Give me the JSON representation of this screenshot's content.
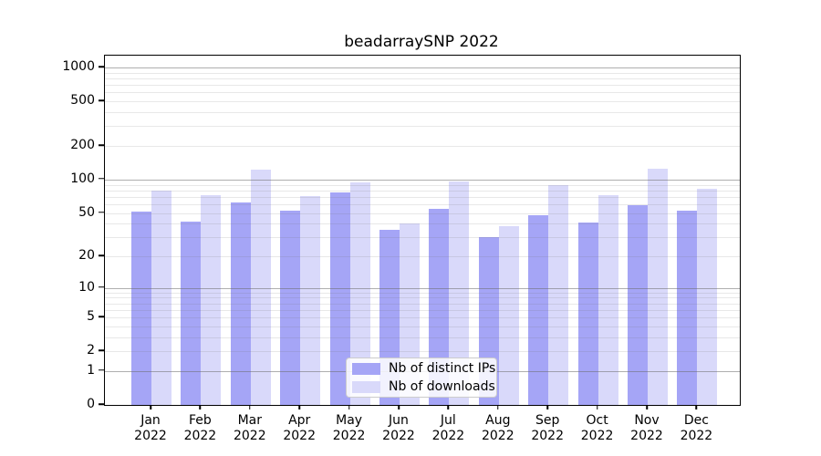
{
  "chart_data": {
    "type": "bar",
    "title": "beadarraySNP 2022",
    "categories": [
      "Jan 2022",
      "Feb 2022",
      "Mar 2022",
      "Apr 2022",
      "May 2022",
      "Jun 2022",
      "Jul 2022",
      "Aug 2022",
      "Sep 2022",
      "Oct 2022",
      "Nov 2022",
      "Dec 2022"
    ],
    "series": [
      {
        "name": "Nb of distinct IPs",
        "color": "#a5a5f6",
        "values": [
          51,
          42,
          62,
          52,
          76,
          35,
          54,
          30,
          48,
          41,
          59,
          52
        ]
      },
      {
        "name": "Nb of downloads",
        "color": "#d9d9fa",
        "values": [
          80,
          72,
          124,
          71,
          95,
          40,
          96,
          38,
          90,
          73,
          125,
          83
        ]
      }
    ],
    "xlabel": "",
    "ylabel": "",
    "y_ticks": [
      0,
      1,
      2,
      5,
      10,
      20,
      50,
      100,
      200,
      500,
      1000
    ],
    "y_scale": "pseudo-log: position proportional to log10(value+1)",
    "ylim": [
      0,
      1280
    ],
    "grid": {
      "orientation": "horizontal",
      "major_at": [
        1,
        10,
        100,
        1000
      ],
      "minor_at": "2-9, 20-90, 200-900",
      "grid_above_bars": true
    },
    "legend": {
      "position": "lower center inside plot",
      "entries": [
        "Nb of distinct IPs",
        "Nb of downloads"
      ]
    }
  }
}
